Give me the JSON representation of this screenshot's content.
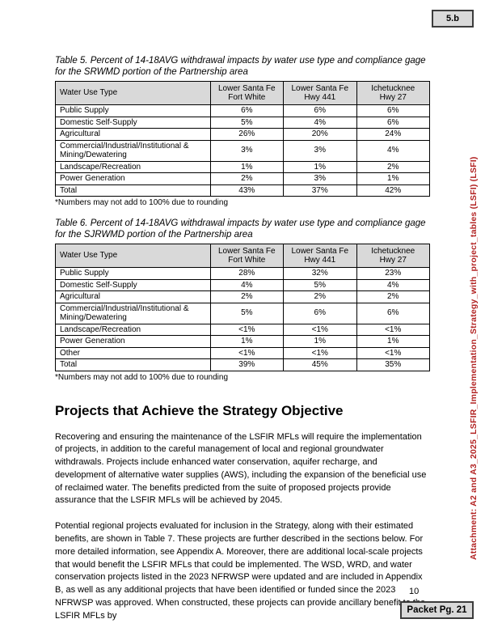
{
  "header": {
    "item_tab": "5.b"
  },
  "tables": {
    "table5": {
      "caption": "Table 5. Percent of 14-18AVG withdrawal impacts by water use type and compliance gage for the SRWMD portion of the Partnership area",
      "columns": [
        "Water Use Type",
        "Lower Santa Fe\nFort White",
        "Lower Santa Fe\nHwy 441",
        "Ichetucknee\nHwy 27"
      ],
      "rows": [
        {
          "label": "Public Supply",
          "values": [
            "6%",
            "6%",
            "6%"
          ]
        },
        {
          "label": "Domestic Self-Supply",
          "values": [
            "5%",
            "4%",
            "6%"
          ]
        },
        {
          "label": "Agricultural",
          "values": [
            "26%",
            "20%",
            "24%"
          ]
        },
        {
          "label": "Commercial/Industrial/Institutional & Mining/Dewatering",
          "values": [
            "3%",
            "3%",
            "4%"
          ]
        },
        {
          "label": "Landscape/Recreation",
          "values": [
            "1%",
            "1%",
            "2%"
          ]
        },
        {
          "label": "Power Generation",
          "values": [
            "2%",
            "3%",
            "1%"
          ]
        },
        {
          "label": "Total",
          "values": [
            "43%",
            "37%",
            "42%"
          ]
        }
      ],
      "footnote": "*Numbers may not add to 100% due to rounding"
    },
    "table6": {
      "caption": "Table 6. Percent of 14-18AVG withdrawal impacts by water use type and compliance gage for the SJRWMD portion of the Partnership area",
      "columns": [
        "Water Use Type",
        "Lower Santa Fe\nFort White",
        "Lower Santa Fe\nHwy 441",
        "Ichetucknee\nHwy 27"
      ],
      "rows": [
        {
          "label": "Public Supply",
          "values": [
            "28%",
            "32%",
            "23%"
          ]
        },
        {
          "label": "Domestic Self-Supply",
          "values": [
            "4%",
            "5%",
            "4%"
          ]
        },
        {
          "label": "Agricultural",
          "values": [
            "2%",
            "2%",
            "2%"
          ]
        },
        {
          "label": "Commercial/Industrial/Institutional & Mining/Dewatering",
          "values": [
            "5%",
            "6%",
            "6%"
          ]
        },
        {
          "label": "Landscape/Recreation",
          "values": [
            "<1%",
            "<1%",
            "<1%"
          ]
        },
        {
          "label": "Power Generation",
          "values": [
            "1%",
            "1%",
            "1%"
          ]
        },
        {
          "label": "Other",
          "values": [
            "<1%",
            "<1%",
            "<1%"
          ]
        },
        {
          "label": "Total",
          "values": [
            "39%",
            "45%",
            "35%"
          ]
        }
      ],
      "footnote": "*Numbers may not add to 100% due to rounding"
    }
  },
  "section": {
    "heading": "Projects that Achieve the Strategy Objective",
    "paragraphs": [
      "Recovering and ensuring the maintenance of the LSFIR MFLs will require the implementation of projects, in addition to the careful management of local and regional groundwater withdrawals. Projects include enhanced water conservation, aquifer recharge, and development of alternative water supplies (AWS), including the expansion of the beneficial use of reclaimed water. The benefits predicted from the suite of proposed projects provide assurance that the LSFIR MFLs will be achieved by 2045.",
      "Potential regional projects evaluated for inclusion in the Strategy, along with their estimated benefits, are shown in Table 7. These projects are further described in the sections below. For more detailed information, see Appendix A. Moreover, there are additional local-scale projects that would benefit the LSFIR MFLs that could be implemented. The WSD, WRD, and water conservation projects listed in the 2023 NFRWSP were updated and are included in Appendix B, as well as any additional projects that have been identified or funded since the 2023 NFRWSP was approved. When constructed, these projects can provide ancillary benefit to the LSFIR MFLs by"
    ]
  },
  "sidebar": {
    "attachment_text": "Attachment: A2 and A3_2025_LSFIR_Implementation_Strategy_with_project_tables (LSFI)  (LSFI)",
    "color": "#B22222"
  },
  "footer": {
    "page_number": "10",
    "packet_label": "Packet Pg. 21"
  }
}
